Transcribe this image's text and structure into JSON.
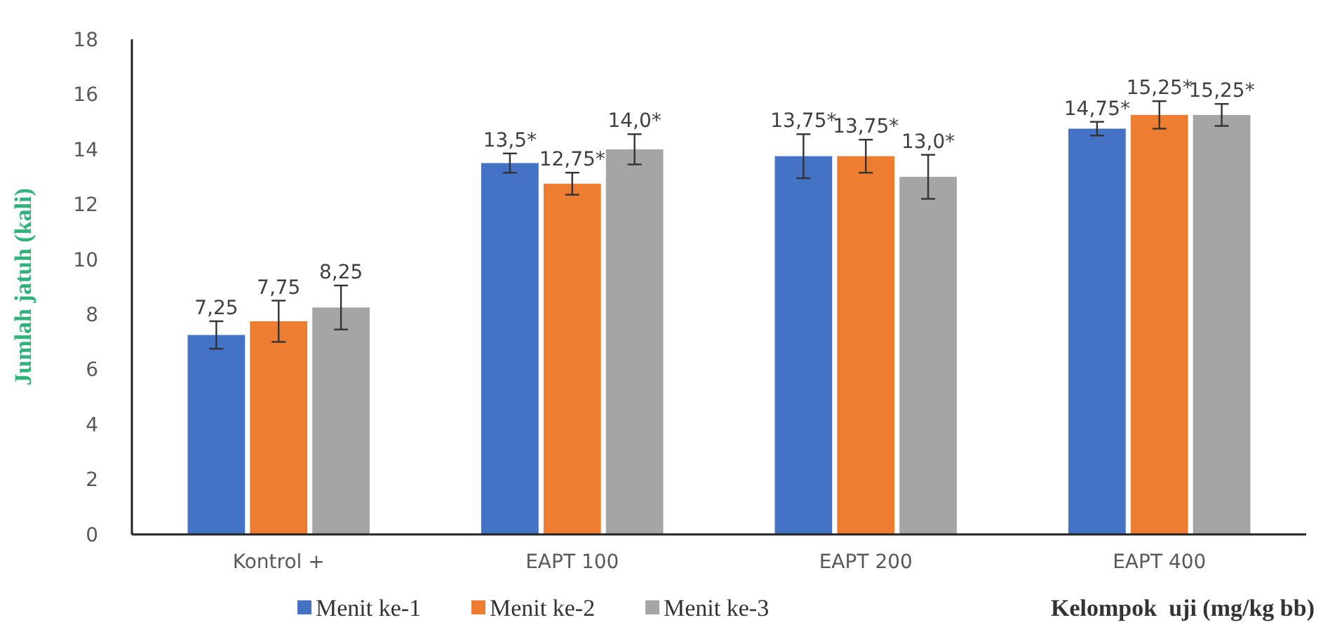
{
  "chart_data": {
    "type": "bar",
    "ylabel": "Jumlah jatuh (kali)",
    "xlabel": "Kelompok  uji (mg/kg bb)",
    "categories": [
      "Kontrol +",
      "EAPT 100",
      "EAPT 200",
      "EAPT 400"
    ],
    "series": [
      {
        "name": "Menit ke-1",
        "color": "#4472c4",
        "values": [
          7.25,
          13.5,
          13.75,
          14.75
        ],
        "errors": [
          0.5,
          0.35,
          0.8,
          0.25
        ],
        "value_labels": [
          "7,25",
          "13,5*",
          "13,75*",
          "14,75*"
        ]
      },
      {
        "name": "Menit ke-2",
        "color": "#ed7d31",
        "values": [
          7.75,
          12.75,
          13.75,
          15.25
        ],
        "errors": [
          0.75,
          0.4,
          0.6,
          0.5
        ],
        "value_labels": [
          "7,75",
          "12,75*",
          "13,75*",
          "15,25*"
        ]
      },
      {
        "name": "Menit ke-3",
        "color": "#a5a5a5",
        "values": [
          8.25,
          14.0,
          13.0,
          15.25
        ],
        "errors": [
          0.8,
          0.55,
          0.8,
          0.4
        ],
        "value_labels": [
          "8,25",
          "14,0*",
          "13,0*",
          "15,25*"
        ]
      }
    ],
    "ylim": [
      0,
      18
    ],
    "yticks": [
      0,
      2,
      4,
      6,
      8,
      10,
      12,
      14,
      16,
      18
    ],
    "grid": false,
    "legend": "bottom"
  }
}
